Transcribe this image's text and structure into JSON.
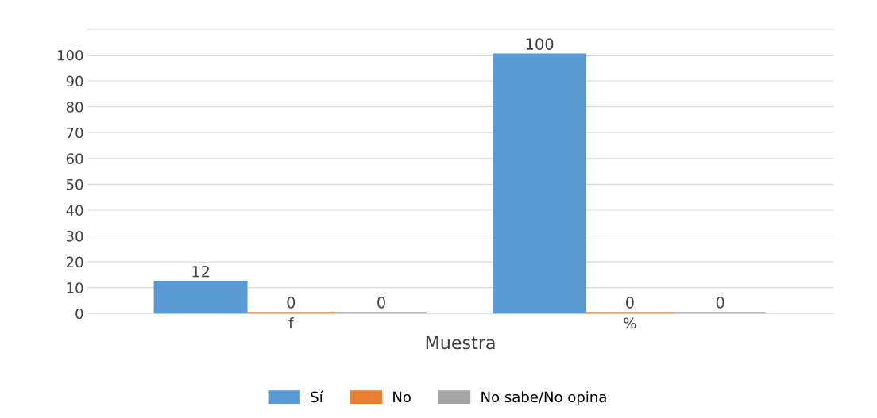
{
  "chart_data": {
    "type": "bar",
    "xlabel": "Muestra",
    "categories": [
      "f",
      "%"
    ],
    "series": [
      {
        "name": "Sí",
        "color": "#5b9bd5",
        "values": [
          12,
          100
        ]
      },
      {
        "name": "No",
        "color": "#ed7d31",
        "values": [
          0,
          0
        ]
      },
      {
        "name": "No sabe/No opina",
        "color": "#a5a5a5",
        "values": [
          0,
          0
        ]
      }
    ],
    "ylim": [
      0,
      110
    ],
    "yticks": [
      0,
      10,
      20,
      30,
      40,
      50,
      60,
      70,
      80,
      90,
      100
    ],
    "grid": "y",
    "legend": "bottom",
    "data_labels": true
  }
}
